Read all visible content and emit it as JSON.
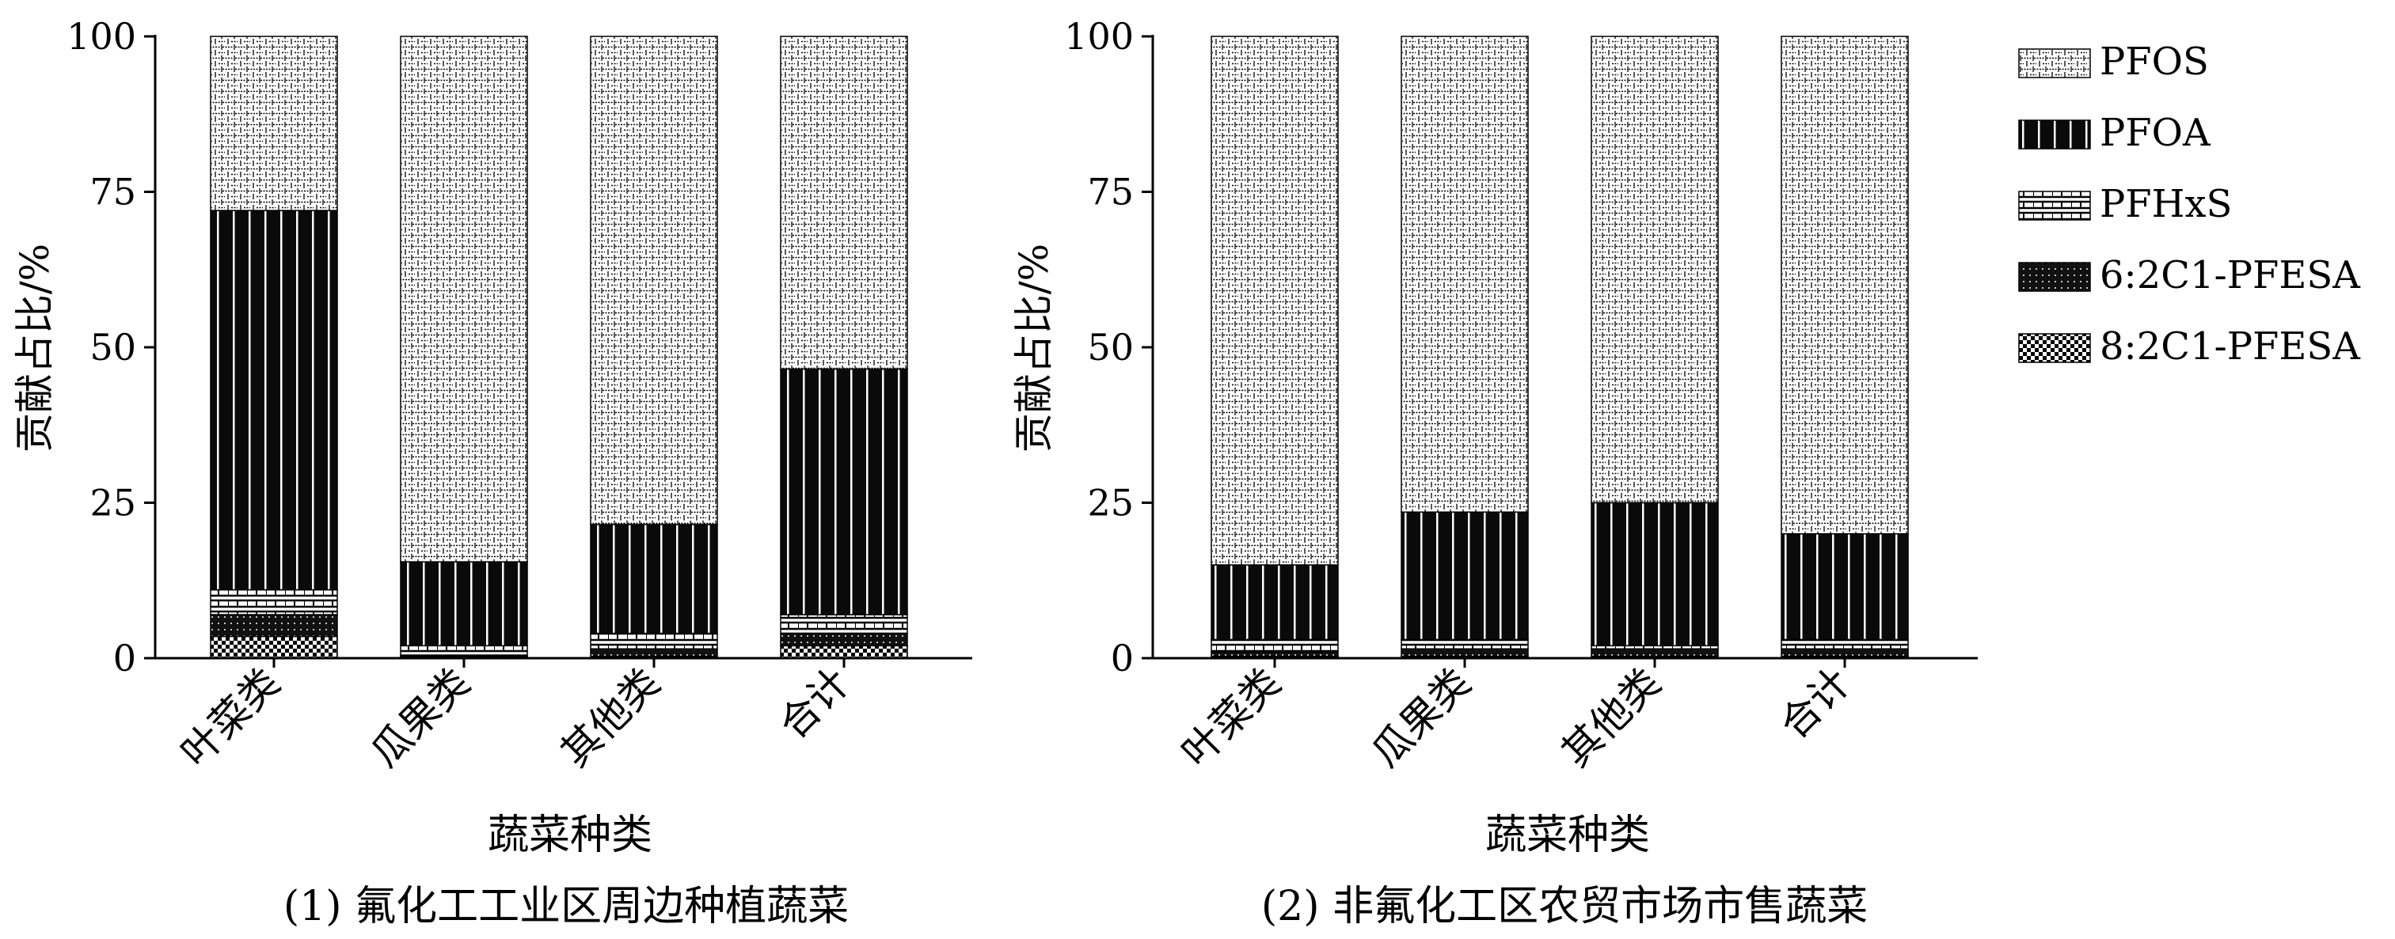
{
  "legend": [
    {
      "name": "PFOS",
      "pattern": "pfos"
    },
    {
      "name": "PFOA",
      "pattern": "pfoa"
    },
    {
      "name": "PFHxS",
      "pattern": "pfhxs"
    },
    {
      "name": "6:2C1-PFESA",
      "pattern": "pfesa62"
    },
    {
      "name": "8:2C1-PFESA",
      "pattern": "pfesa82"
    }
  ],
  "chart_data": [
    {
      "type": "bar",
      "stacked": true,
      "caption": "(1) 氟化工工业区周边种植蔬菜",
      "xlabel": "蔬菜种类",
      "ylabel": "贡献占比/%",
      "ylim": [
        0,
        100
      ],
      "yticks": [
        "0",
        "25",
        "50",
        "75",
        "100"
      ],
      "categories": [
        "叶菜类",
        "瓜果类",
        "其他类",
        "合计"
      ],
      "series": [
        {
          "name": "8:2C1-PFESA",
          "values": [
            3.5,
            0.3,
            0.3,
            2.0
          ]
        },
        {
          "name": "6:2C1-PFESA",
          "values": [
            3.5,
            0.2,
            1.2,
            2.0
          ]
        },
        {
          "name": "PFHxS",
          "values": [
            4.0,
            1.5,
            2.5,
            3.0
          ]
        },
        {
          "name": "PFOA",
          "values": [
            61.0,
            13.5,
            17.5,
            39.5
          ]
        },
        {
          "name": "PFOS",
          "values": [
            28.0,
            84.5,
            78.5,
            53.5
          ]
        }
      ]
    },
    {
      "type": "bar",
      "stacked": true,
      "caption": "(2) 非氟化工区农贸市场市售蔬菜",
      "xlabel": "蔬菜种类",
      "ylabel": "贡献占比/%",
      "ylim": [
        0,
        100
      ],
      "yticks": [
        "0",
        "25",
        "50",
        "75",
        "100"
      ],
      "categories": [
        "叶菜类",
        "瓜果类",
        "其他类",
        "合计"
      ],
      "series": [
        {
          "name": "8:2C1-PFESA",
          "values": [
            0.3,
            0.3,
            0.3,
            0.3
          ]
        },
        {
          "name": "6:2C1-PFESA",
          "values": [
            0.7,
            1.2,
            1.2,
            1.2
          ]
        },
        {
          "name": "PFHxS",
          "values": [
            2.0,
            1.5,
            0.5,
            1.5
          ]
        },
        {
          "name": "PFOA",
          "values": [
            12.0,
            20.5,
            23.0,
            17.0
          ]
        },
        {
          "name": "PFOS",
          "values": [
            85.0,
            76.5,
            75.0,
            80.0
          ]
        }
      ]
    }
  ]
}
